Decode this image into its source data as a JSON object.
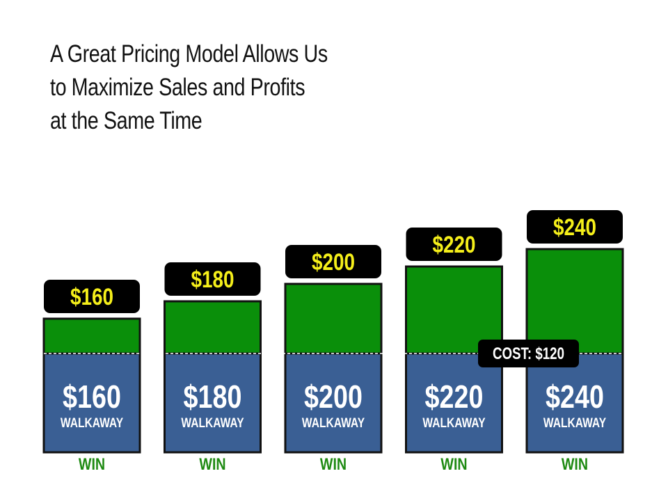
{
  "title_lines": [
    "A Great Pricing Model Allows Us",
    "to Maximize Sales and Profits",
    "at the Same Time"
  ],
  "colors": {
    "profit": "#0a8f0a",
    "cost": "#3a5f94",
    "badge_bg": "#000000",
    "badge_text": "#f5ef1a",
    "win_text": "#1e8a12",
    "border": "#111111"
  },
  "chart_data": {
    "type": "bar",
    "categories": [
      "$160",
      "$180",
      "$200",
      "$220",
      "$240"
    ],
    "values": [
      160,
      180,
      200,
      220,
      240
    ],
    "cost": 120,
    "cost_label": "COST: $120",
    "bar_top_labels": [
      "$160",
      "$180",
      "$200",
      "$220",
      "$240"
    ],
    "walkaway_values": [
      "$160",
      "$180",
      "$200",
      "$220",
      "$240"
    ],
    "walkaway_label": "WALKAWAY",
    "outcome_labels": [
      "WIN",
      "WIN",
      "WIN",
      "WIN",
      "WIN"
    ],
    "title": "A Great Pricing Model Allows Us to Maximize Sales and Profits at the Same Time",
    "xlabel": "",
    "ylabel": ""
  }
}
